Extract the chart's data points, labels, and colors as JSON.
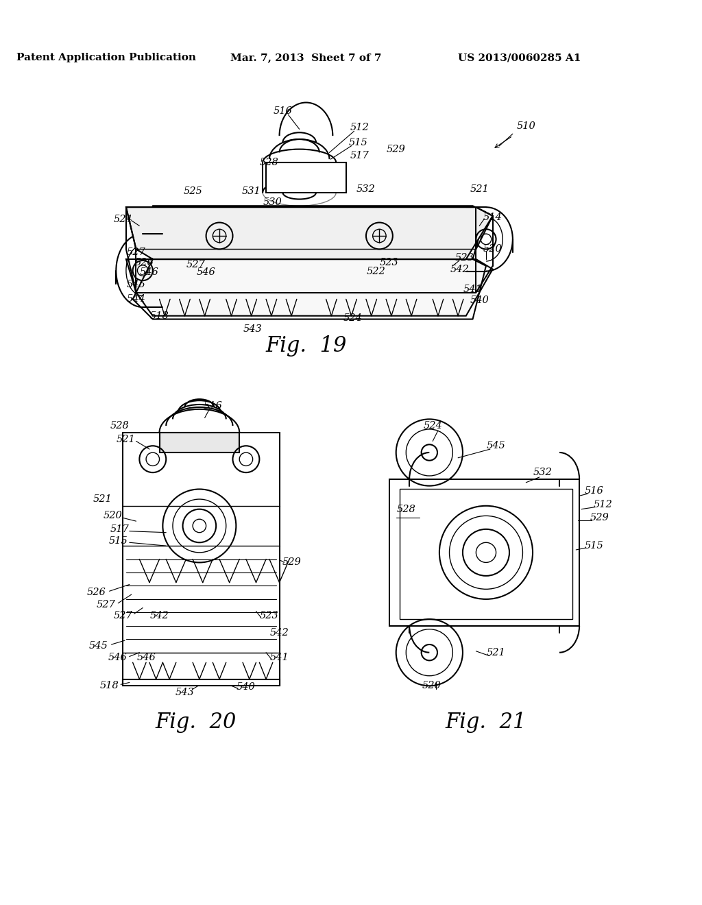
{
  "bg_color": "#ffffff",
  "line_color": "#000000",
  "header_left": "Patent Application Publication",
  "header_center": "Mar. 7, 2013  Sheet 7 of 7",
  "header_right": "US 2013/0060285 A1",
  "fig19_label": "Fig.  19",
  "fig20_label": "Fig.  20",
  "fig21_label": "Fig.  21",
  "fig_label_fontsize": 22,
  "header_fontsize": 11,
  "ref_fontsize": 10.5
}
